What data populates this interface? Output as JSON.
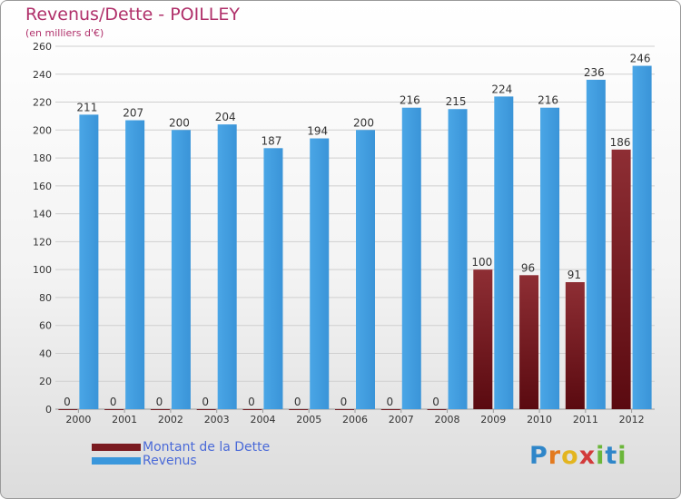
{
  "title": "Revenus/Dette - POILLEY",
  "subtitle": "(en milliers d'€)",
  "colors": {
    "dette": "#7a1a20",
    "revenus": "#3a97dc",
    "grid": "#cfcfcf",
    "title": "#b0306a"
  },
  "legend": {
    "dette": "Montant de la Dette",
    "revenus": "Revenus"
  },
  "logo": {
    "text": "Proxiti",
    "letters": [
      "P",
      "r",
      "o",
      "x",
      "i",
      "t",
      "i"
    ]
  },
  "chart_data": {
    "type": "bar",
    "title": "Revenus/Dette - POILLEY",
    "ylabel": "(en milliers d'€)",
    "categories": [
      "2000",
      "2001",
      "2002",
      "2003",
      "2004",
      "2005",
      "2006",
      "2007",
      "2008",
      "2009",
      "2010",
      "2011",
      "2012"
    ],
    "series": [
      {
        "name": "Montant de la Dette",
        "values": [
          0,
          0,
          0,
          0,
          0,
          0,
          0,
          0,
          0,
          100,
          96,
          91,
          186
        ]
      },
      {
        "name": "Revenus",
        "values": [
          211,
          207,
          200,
          204,
          187,
          194,
          200,
          216,
          215,
          224,
          216,
          236,
          246
        ]
      }
    ],
    "ylim": [
      0,
      260
    ],
    "yticks": [
      0,
      20,
      40,
      60,
      80,
      100,
      120,
      140,
      160,
      180,
      200,
      220,
      240,
      260
    ],
    "grid": true,
    "legend_position": "bottom-left"
  }
}
